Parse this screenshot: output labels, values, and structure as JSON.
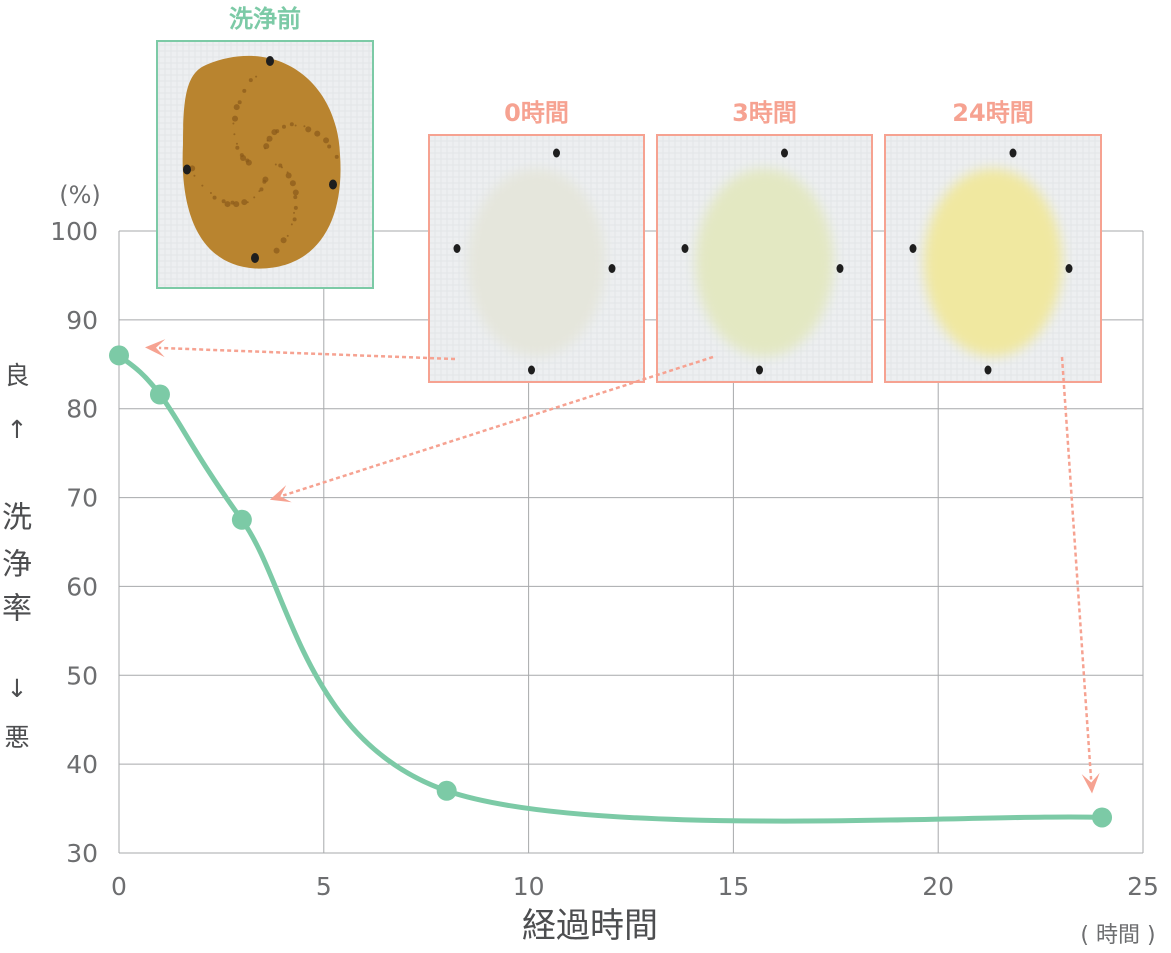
{
  "chart_data": {
    "type": "line",
    "x": [
      0,
      1,
      3,
      8,
      24
    ],
    "y": [
      86,
      81.6,
      67.5,
      37,
      34
    ],
    "xlim": [
      0,
      25
    ],
    "ylim": [
      30,
      100
    ],
    "xticks": [
      0,
      5,
      10,
      15,
      20,
      25
    ],
    "yticks": [
      30,
      40,
      50,
      60,
      70,
      80,
      90,
      100
    ],
    "xlabel": "経過時間",
    "xunit": "( 時間 )",
    "yunit": "(%)",
    "ylabel_chars": [
      "良",
      "↑",
      "洗",
      "浄",
      "率",
      "↓",
      "悪"
    ],
    "grid": true,
    "line_color": "#7ccaa6",
    "accent_color": "#f6a291"
  },
  "photos": {
    "before": {
      "label": "洗浄前",
      "stain": "brown-stain",
      "frame_color": "#7ccaa6"
    },
    "after": [
      {
        "label": "0時間",
        "stain": "faint-stain",
        "points_to_x": 0
      },
      {
        "label": "3時間",
        "stain": "light-stain",
        "points_to_x": 3
      },
      {
        "label": "24時間",
        "stain": "yellow-stain",
        "points_to_x": 24
      }
    ],
    "frame_color": "#f6a291"
  }
}
